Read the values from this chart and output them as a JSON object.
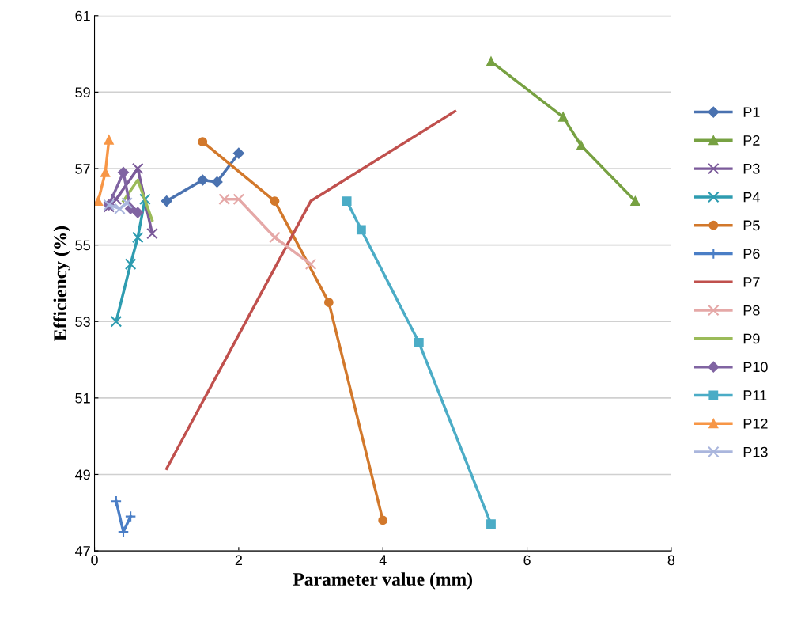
{
  "chart_data": {
    "type": "line",
    "xlabel": "Parameter value (mm)",
    "ylabel": "Efficiency (%)",
    "xlim": [
      0,
      8
    ],
    "xticks": [
      0,
      2,
      4,
      6,
      8
    ],
    "ylim": [
      47,
      61
    ],
    "yticks": [
      47,
      49,
      51,
      53,
      55,
      57,
      59,
      61
    ],
    "grid": "y",
    "legend": "right",
    "line_style": "solid",
    "series": [
      {
        "name": "P1",
        "color": "#4a72b0",
        "marker": "diamond",
        "x": [
          1,
          1.5,
          1.7,
          2
        ],
        "values": [
          56.15,
          56.7,
          56.65,
          57.4
        ]
      },
      {
        "name": "P2",
        "color": "#77a142",
        "marker": "triangle",
        "x": [
          5.5,
          6.5,
          6.75,
          7.5
        ],
        "values": [
          59.8,
          58.35,
          57.6,
          56.15
        ]
      },
      {
        "name": "P3",
        "color": "#7b5a9a",
        "marker": "cross",
        "x": [
          0.2,
          0.3,
          0.6,
          0.8
        ],
        "values": [
          56.0,
          56.2,
          57.0,
          55.3
        ]
      },
      {
        "name": "P4",
        "color": "#2e9cb0",
        "marker": "cross",
        "x": [
          0.3,
          0.5,
          0.6,
          0.7
        ],
        "values": [
          53.0,
          54.5,
          55.2,
          56.2
        ]
      },
      {
        "name": "P5",
        "color": "#d2782b",
        "marker": "circle",
        "x": [
          1.5,
          2.5,
          3.25,
          4
        ],
        "values": [
          57.7,
          56.15,
          53.5,
          47.8
        ]
      },
      {
        "name": "P6",
        "color": "#4a7ec6",
        "marker": "plus",
        "x": [
          0.3,
          0.4,
          0.5
        ],
        "values": [
          48.3,
          47.5,
          47.9
        ]
      },
      {
        "name": "P7",
        "color": "#c0504d",
        "marker": "none",
        "x": [
          1,
          3,
          5
        ],
        "values": [
          49.15,
          56.15,
          58.5
        ]
      },
      {
        "name": "P8",
        "color": "#e5a8a7",
        "marker": "cross",
        "x": [
          1.8,
          2,
          2.5,
          3
        ],
        "values": [
          56.2,
          56.2,
          55.2,
          54.5
        ]
      },
      {
        "name": "P9",
        "color": "#9bbb59",
        "marker": "none",
        "x": [
          0.4,
          0.6,
          0.8
        ],
        "values": [
          56.15,
          56.7,
          55.65
        ]
      },
      {
        "name": "P10",
        "color": "#8064a2",
        "marker": "diamond",
        "x": [
          0.2,
          0.4,
          0.5,
          0.6
        ],
        "values": [
          56.05,
          56.9,
          55.95,
          55.85
        ]
      },
      {
        "name": "P11",
        "color": "#4bacc6",
        "marker": "square",
        "x": [
          3.5,
          3.7,
          4.5,
          5.5
        ],
        "values": [
          56.15,
          55.4,
          52.45,
          47.7
        ]
      },
      {
        "name": "P12",
        "color": "#f79646",
        "marker": "triangle",
        "x": [
          0.05,
          0.15,
          0.2
        ],
        "values": [
          56.15,
          56.9,
          57.75
        ]
      },
      {
        "name": "P13",
        "color": "#aab6dd",
        "marker": "cross",
        "x": [
          0.2,
          0.35,
          0.45
        ],
        "values": [
          56.05,
          55.95,
          56.1
        ]
      }
    ]
  }
}
